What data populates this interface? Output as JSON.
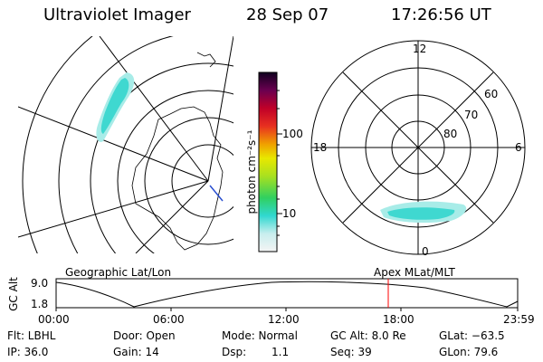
{
  "header": {
    "instrument": "Ultraviolet Imager",
    "date": "28 Sep 07",
    "time": "17:26:56 UT"
  },
  "colorbar": {
    "label": "photon cm⁻²s⁻¹",
    "ticks": [
      "100",
      "10"
    ]
  },
  "polar_plot": {
    "mlt_labels": [
      "12",
      "18",
      "6",
      "0"
    ],
    "mlat_labels": [
      "60",
      "70",
      "80"
    ]
  },
  "timeline": {
    "left_title": "Geographic Lat/Lon",
    "right_title": "Apex MLat/MLT",
    "ylabel": "GC Alt",
    "y_ticks": [
      "9.0",
      "1.8"
    ],
    "x_ticks": [
      "00:00",
      "06:00",
      "12:00",
      "18:00",
      "23:59"
    ],
    "current_time": "17:26:56",
    "marker_color": "#ff0000"
  },
  "status": {
    "flt": "Flt: LBHL",
    "ip": "IP: 36.0",
    "door": "Door: Open",
    "gain": "Gain: 14",
    "mode": "Mode: Normal",
    "dsp": "Dsp:",
    "dsp_val": "1.1",
    "gcalt": "GC Alt: 8.0 Re",
    "seq": "Seq: 39",
    "glat": "GLat: −63.5",
    "glon": "GLon: 79.6"
  },
  "colors": {
    "aurora_cyan": "#3fd8d0",
    "aurora_light": "#a8ece8"
  }
}
